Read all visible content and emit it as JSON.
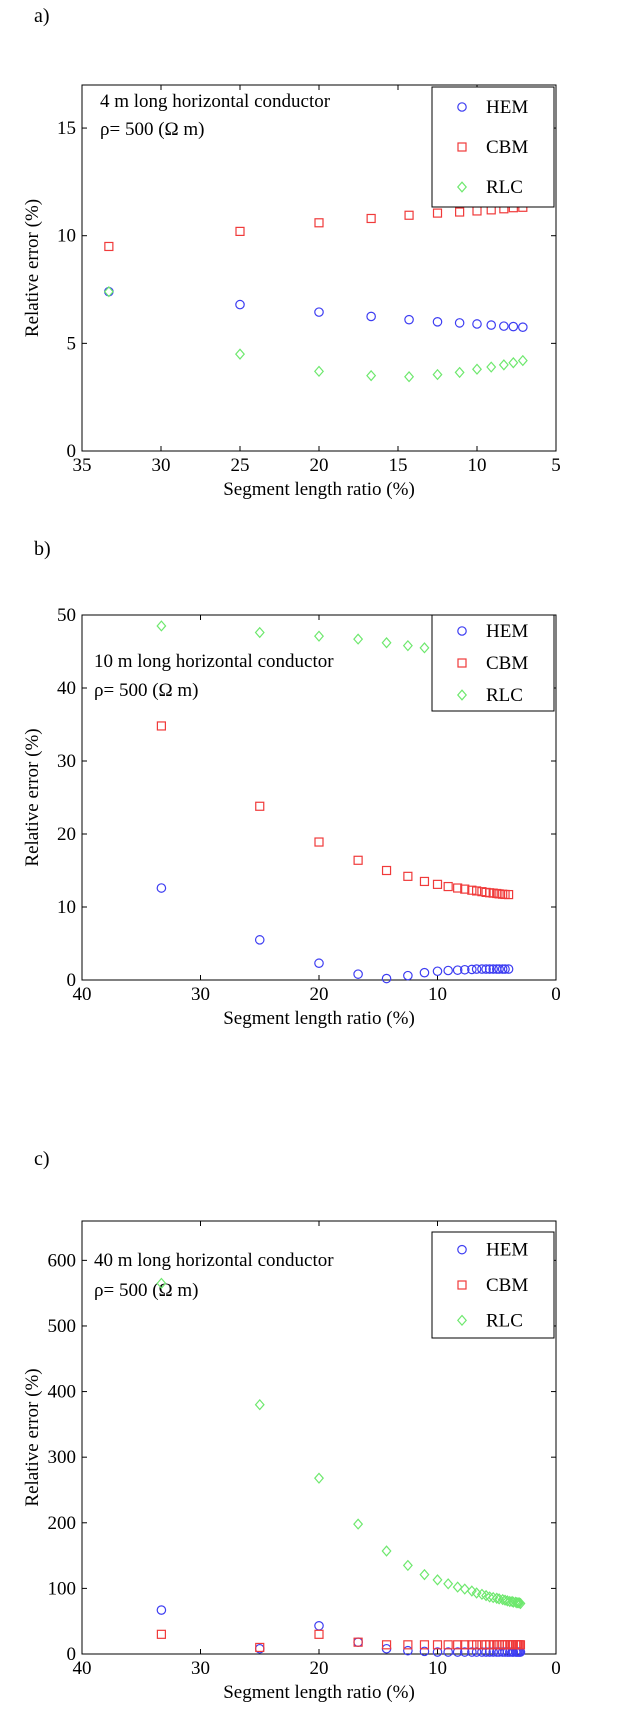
{
  "chart_data": [
    {
      "panel_label": "a)",
      "type": "scatter",
      "xlabel": "Segment length ratio (%)",
      "ylabel": "Relative error (%)",
      "xlim": [
        35,
        5
      ],
      "ylim": [
        0,
        17
      ],
      "xticks": [
        35,
        30,
        25,
        20,
        15,
        10,
        5
      ],
      "yticks": [
        0,
        5,
        10,
        15
      ],
      "annotations": [
        "4 m long horizontal conductor",
        "ρ= 500 (Ω m)"
      ],
      "legend_position": "top-right",
      "series": [
        {
          "name": "HEM",
          "marker": "circle",
          "color": "#3d3df2",
          "x": [
            33.3,
            25,
            20,
            16.7,
            14.3,
            12.5,
            11.1,
            10,
            9.1,
            8.3,
            7.7,
            7.1
          ],
          "y": [
            7.4,
            6.8,
            6.45,
            6.25,
            6.1,
            6.0,
            5.95,
            5.9,
            5.85,
            5.8,
            5.78,
            5.75
          ]
        },
        {
          "name": "CBM",
          "marker": "square",
          "color": "#f03a3a",
          "x": [
            33.3,
            25,
            20,
            16.7,
            14.3,
            12.5,
            11.1,
            10,
            9.1,
            8.3,
            7.7,
            7.1
          ],
          "y": [
            9.5,
            10.2,
            10.6,
            10.8,
            10.95,
            11.05,
            11.1,
            11.15,
            11.2,
            11.25,
            11.3,
            11.32
          ]
        },
        {
          "name": "RLC",
          "marker": "diamond",
          "color": "#6ee86e",
          "x": [
            33.3,
            25,
            20,
            16.7,
            14.3,
            12.5,
            11.1,
            10,
            9.1,
            8.3,
            7.7,
            7.1
          ],
          "y": [
            7.4,
            4.5,
            3.7,
            3.5,
            3.45,
            3.55,
            3.65,
            3.8,
            3.9,
            4.0,
            4.1,
            4.2
          ]
        }
      ]
    },
    {
      "panel_label": "b)",
      "type": "scatter",
      "xlabel": "Segment length ratio (%)",
      "ylabel": "Relative error (%)",
      "xlim": [
        40,
        0
      ],
      "ylim": [
        0,
        50
      ],
      "xticks": [
        40,
        30,
        20,
        10,
        0
      ],
      "yticks": [
        0,
        10,
        20,
        30,
        40,
        50
      ],
      "annotations": [
        "10 m long horizontal conductor",
        "ρ= 500 (Ω m)"
      ],
      "legend_position": "top-right",
      "series": [
        {
          "name": "HEM",
          "marker": "circle",
          "color": "#3d3df2",
          "x": [
            33.3,
            25,
            20,
            16.7,
            14.3,
            12.5,
            11.1,
            10,
            9.1,
            8.3,
            7.7,
            7.1,
            6.7,
            6.25,
            5.9,
            5.6,
            5.3,
            5.0,
            4.8,
            4.5,
            4.3,
            4.0
          ],
          "y": [
            12.6,
            5.5,
            2.3,
            0.8,
            0.2,
            0.6,
            1.0,
            1.2,
            1.3,
            1.35,
            1.4,
            1.45,
            1.5,
            1.5,
            1.5,
            1.5,
            1.5,
            1.5,
            1.5,
            1.5,
            1.5,
            1.5
          ]
        },
        {
          "name": "CBM",
          "marker": "square",
          "color": "#f03a3a",
          "x": [
            33.3,
            25,
            20,
            16.7,
            14.3,
            12.5,
            11.1,
            10,
            9.1,
            8.3,
            7.7,
            7.1,
            6.7,
            6.25,
            5.9,
            5.6,
            5.3,
            5.0,
            4.8,
            4.5,
            4.3,
            4.0
          ],
          "y": [
            34.8,
            23.8,
            18.9,
            16.4,
            15.0,
            14.2,
            13.5,
            13.1,
            12.8,
            12.6,
            12.45,
            12.3,
            12.2,
            12.1,
            12.0,
            11.95,
            11.9,
            11.85,
            11.8,
            11.75,
            11.72,
            11.7
          ]
        },
        {
          "name": "RLC",
          "marker": "diamond",
          "color": "#6ee86e",
          "x": [
            33.3,
            25,
            20,
            16.7,
            14.3,
            12.5,
            11.1
          ],
          "y": [
            48.5,
            47.6,
            47.1,
            46.7,
            46.2,
            45.8,
            45.5
          ]
        }
      ]
    },
    {
      "panel_label": "c)",
      "type": "scatter",
      "xlabel": "Segment length ratio (%)",
      "ylabel": "Relative error (%)",
      "xlim": [
        40,
        0
      ],
      "ylim": [
        0,
        660
      ],
      "xticks": [
        40,
        30,
        20,
        10,
        0
      ],
      "yticks": [
        0,
        100,
        200,
        300,
        400,
        500,
        600
      ],
      "annotations": [
        "40 m long horizontal conductor",
        "ρ= 500 (Ω m)"
      ],
      "legend_position": "top-right",
      "series": [
        {
          "name": "HEM",
          "marker": "circle",
          "color": "#3d3df2",
          "x": [
            33.3,
            25,
            20,
            16.7,
            14.3,
            12.5,
            11.1,
            10,
            9.1,
            8.3,
            7.7,
            7.1,
            6.7,
            6.25,
            5.9,
            5.6,
            5.3,
            5.0,
            4.8,
            4.5,
            4.3,
            4.1,
            3.9,
            3.7,
            3.6,
            3.4,
            3.3,
            3.2,
            3.1,
            3.0
          ],
          "y": [
            67,
            8,
            43,
            18,
            8,
            5,
            4,
            3,
            3,
            3,
            3,
            3,
            3,
            3,
            3,
            3,
            3,
            3,
            3,
            3,
            3,
            3,
            3,
            3,
            3,
            3,
            3,
            3,
            3,
            3
          ]
        },
        {
          "name": "CBM",
          "marker": "square",
          "color": "#f03a3a",
          "x": [
            33.3,
            25,
            20,
            16.7,
            14.3,
            12.5,
            11.1,
            10,
            9.1,
            8.3,
            7.7,
            7.1,
            6.7,
            6.25,
            5.9,
            5.6,
            5.3,
            5.0,
            4.8,
            4.5,
            4.3,
            4.1,
            3.9,
            3.7,
            3.6,
            3.4,
            3.3,
            3.2,
            3.1,
            3.0
          ],
          "y": [
            30,
            10,
            30,
            18,
            14,
            14,
            14,
            14,
            14,
            14,
            14,
            14,
            14,
            14,
            14,
            14,
            14,
            14,
            14,
            14,
            14,
            14,
            14,
            14,
            14,
            14,
            14,
            14,
            14,
            14
          ]
        },
        {
          "name": "RLC",
          "marker": "diamond",
          "color": "#6ee86e",
          "x": [
            33.3,
            25,
            20,
            16.7,
            14.3,
            12.5,
            11.1,
            10,
            9.1,
            8.3,
            7.7,
            7.1,
            6.7,
            6.25,
            5.9,
            5.6,
            5.3,
            5.0,
            4.8,
            4.5,
            4.3,
            4.1,
            3.9,
            3.7,
            3.6,
            3.4,
            3.3,
            3.2,
            3.1,
            3.0
          ],
          "y": [
            565,
            380,
            268,
            198,
            157,
            135,
            121,
            113,
            107,
            102,
            99,
            96,
            93,
            91,
            89,
            87,
            86,
            85,
            84,
            83,
            82,
            81,
            80,
            80,
            79,
            79,
            78,
            78,
            78,
            77
          ]
        }
      ]
    }
  ]
}
